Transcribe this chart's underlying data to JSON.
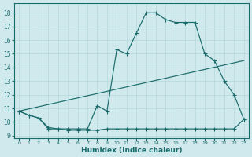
{
  "xlabel": "Humidex (Indice chaleur)",
  "bg_color": "#cfe9ed",
  "grid_color": "#b8d8dd",
  "line_color": "#1a6b6b",
  "xlim": [
    -0.5,
    23.5
  ],
  "ylim": [
    8.8,
    18.7
  ],
  "yticks": [
    9,
    10,
    11,
    12,
    13,
    14,
    15,
    16,
    17,
    18
  ],
  "xticks": [
    0,
    1,
    2,
    3,
    4,
    5,
    6,
    7,
    8,
    9,
    10,
    11,
    12,
    13,
    14,
    15,
    16,
    17,
    18,
    19,
    20,
    21,
    22,
    23
  ],
  "upper_x": [
    0,
    1,
    2,
    3,
    4,
    5,
    6,
    7,
    8,
    9,
    10,
    11,
    12,
    13,
    14,
    15,
    16,
    17,
    18,
    19,
    20,
    21,
    22,
    23
  ],
  "upper_y": [
    10.8,
    10.5,
    10.3,
    9.6,
    9.5,
    9.5,
    9.5,
    9.5,
    11.2,
    10.8,
    15.3,
    15.0,
    16.5,
    18.0,
    18.0,
    17.5,
    17.3,
    17.3,
    17.3,
    15.0,
    14.5,
    13.0,
    12.0,
    10.2
  ],
  "lower_x": [
    0,
    1,
    2,
    3,
    4,
    5,
    6,
    7,
    8,
    9,
    10,
    11,
    12,
    13,
    14,
    15,
    16,
    17,
    18,
    19,
    20,
    21,
    22,
    23
  ],
  "lower_y": [
    10.8,
    10.5,
    10.3,
    9.5,
    9.5,
    9.4,
    9.4,
    9.4,
    9.4,
    9.5,
    9.5,
    9.5,
    9.5,
    9.5,
    9.5,
    9.5,
    9.5,
    9.5,
    9.5,
    9.5,
    9.5,
    9.5,
    9.5,
    10.2
  ],
  "trend_x": [
    0,
    23
  ],
  "trend_y": [
    10.8,
    14.5
  ]
}
